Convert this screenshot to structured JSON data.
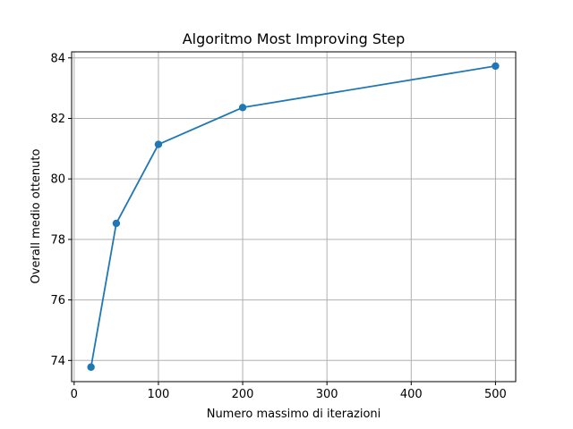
{
  "chart_data": {
    "type": "line",
    "title": "Algoritmo Most Improving Step",
    "xlabel": "Numero massimo di iterazioni",
    "ylabel": "Overall medio ottenuto",
    "xlim": [
      -3,
      524
    ],
    "ylim": [
      73.3,
      84.2
    ],
    "xticks": [
      0,
      100,
      200,
      300,
      400,
      500
    ],
    "yticks": [
      74,
      76,
      78,
      80,
      82,
      84
    ],
    "grid": true,
    "series": [
      {
        "x": [
          20,
          50,
          100,
          200,
          500
        ],
        "y": [
          73.78,
          78.53,
          81.14,
          82.36,
          83.73
        ],
        "color": "#1f77b4",
        "marker": "circle"
      }
    ]
  }
}
